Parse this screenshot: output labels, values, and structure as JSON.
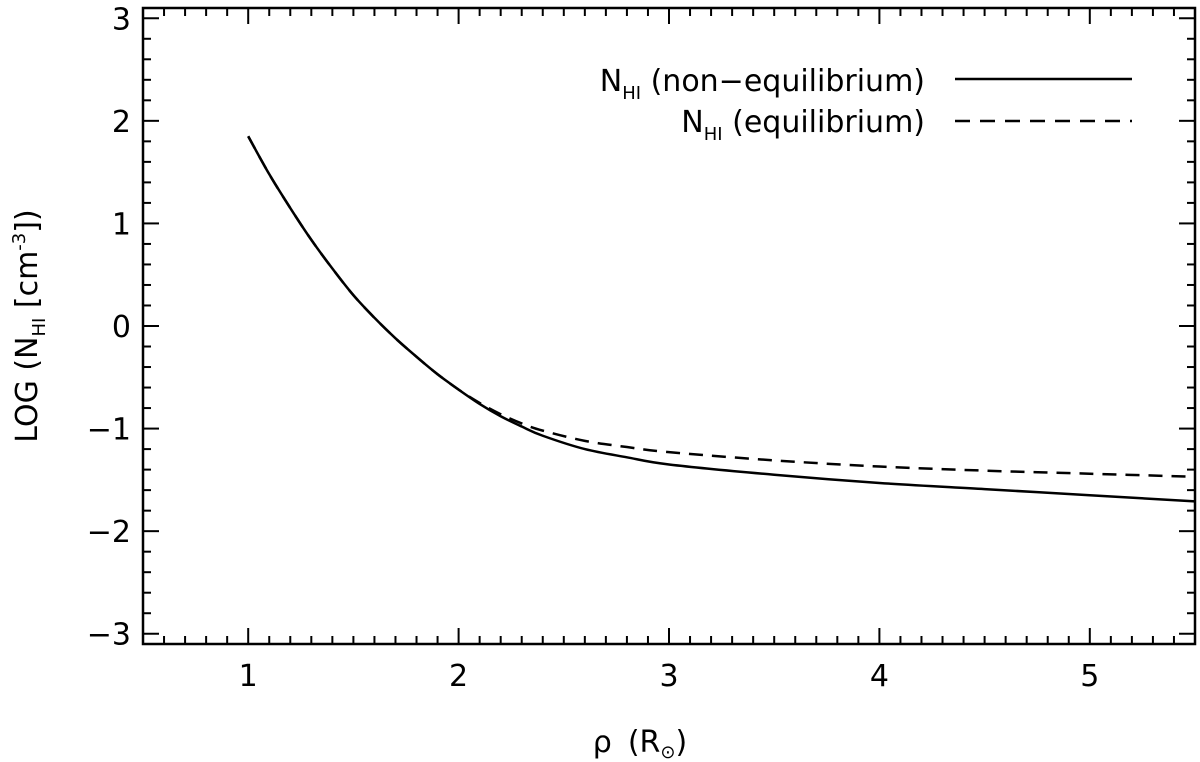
{
  "chart_data": {
    "type": "line",
    "xlabel": {
      "symbol": "ρ",
      "open": "(",
      "base": "R",
      "sub": "⊙",
      "close": ")"
    },
    "ylabel": {
      "prefix": "LOG (N",
      "sub": "HI",
      "middle": " [cm",
      "sup": "-3",
      "suffix": "])"
    },
    "xlim": [
      0.5,
      5.5
    ],
    "ylim": [
      -3.1,
      3.1
    ],
    "xticks": [
      1,
      2,
      3,
      4,
      5
    ],
    "xtick_labels": [
      "1",
      "2",
      "3",
      "4",
      "5"
    ],
    "yticks": [
      -3,
      -2,
      -1,
      0,
      1,
      2,
      3
    ],
    "ytick_labels": [
      "−3",
      "−2",
      "−1",
      "0",
      "1",
      "2",
      "3"
    ],
    "grid": false,
    "legend_position": "top-right",
    "series": [
      {
        "name_base": "N",
        "name_sub": "HI",
        "name_rest": " (non−equilibrium)",
        "style": "solid",
        "color": "#000000",
        "x": [
          1.0,
          1.1,
          1.2,
          1.3,
          1.4,
          1.5,
          1.6,
          1.7,
          1.8,
          1.9,
          2.0,
          2.1,
          2.2,
          2.3,
          2.4,
          2.6,
          2.8,
          3.0,
          3.5,
          4.0,
          4.5,
          5.0,
          5.5
        ],
        "y": [
          1.85,
          1.48,
          1.15,
          0.84,
          0.56,
          0.3,
          0.08,
          -0.12,
          -0.3,
          -0.47,
          -0.62,
          -0.76,
          -0.88,
          -0.98,
          -1.07,
          -1.2,
          -1.28,
          -1.35,
          -1.45,
          -1.53,
          -1.59,
          -1.65,
          -1.71
        ]
      },
      {
        "name_base": "N",
        "name_sub": "HI",
        "name_rest": " (equilibrium)",
        "style": "dashed",
        "color": "#000000",
        "x": [
          1.0,
          1.1,
          1.2,
          1.3,
          1.4,
          1.5,
          1.6,
          1.7,
          1.8,
          1.9,
          2.0,
          2.1,
          2.2,
          2.3,
          2.4,
          2.6,
          2.8,
          3.0,
          3.5,
          4.0,
          4.5,
          5.0,
          5.5
        ],
        "y": [
          1.85,
          1.48,
          1.15,
          0.84,
          0.56,
          0.3,
          0.08,
          -0.12,
          -0.3,
          -0.47,
          -0.62,
          -0.75,
          -0.86,
          -0.95,
          -1.02,
          -1.12,
          -1.18,
          -1.23,
          -1.31,
          -1.37,
          -1.41,
          -1.44,
          -1.47
        ]
      }
    ]
  }
}
